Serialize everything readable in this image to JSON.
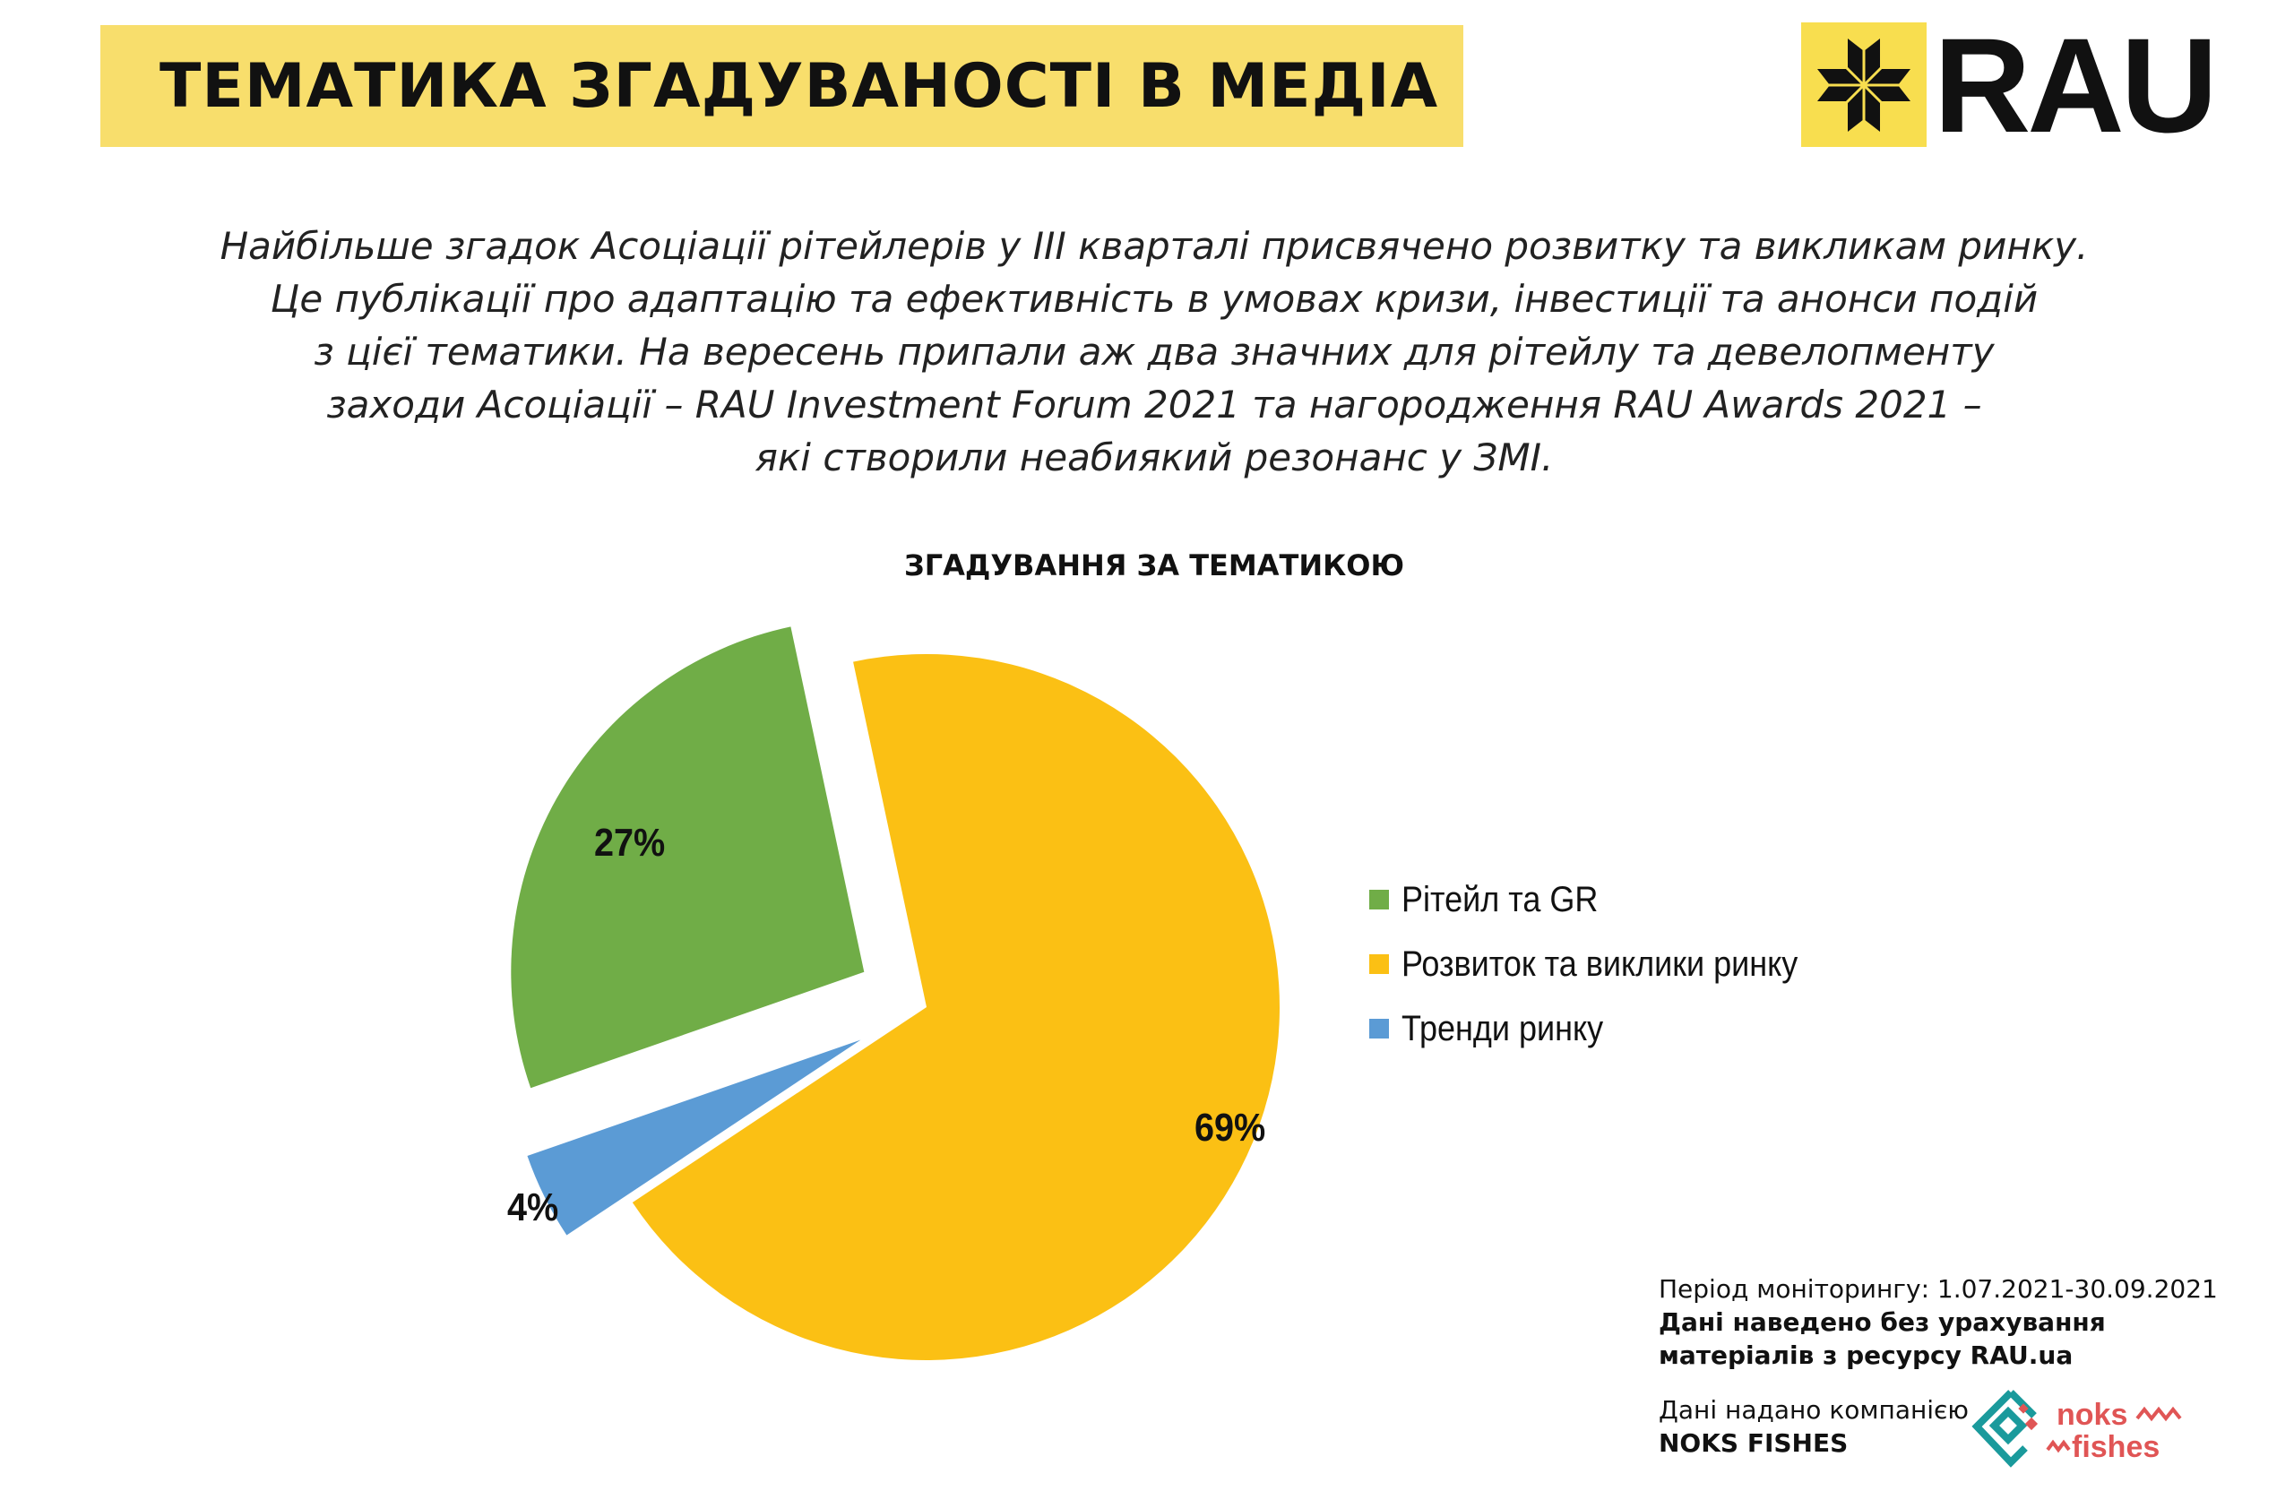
{
  "header": {
    "title": "ТЕМАТИКА ЗГАДУВАНОСТІ В МЕДІА",
    "logo_text": "RAU"
  },
  "intro": [
    "Найбільше згадок Асоціації рітейлерів у ІІІ кварталі присвячено розвитку та викликам ринку.",
    "Це публікації про адаптацію та ефективність в умовах кризи, інвестиції та анонси подій",
    "з цієї тематики. На вересень припали аж два значних для рітейлу та девелопменту",
    "заходи Асоціації – RAU Investment Forum 2021 та нагородження RAU Awards 2021 –",
    "які створили неабиякий резонанс у ЗМІ."
  ],
  "chart_data": {
    "type": "pie",
    "title": "ЗГАДУВАННЯ ЗА ТЕМАТИКОЮ",
    "categories": [
      "Рітейл та GR",
      "Розвиток та виклики ринку",
      "Тренди ринку"
    ],
    "values": [
      27,
      69,
      4
    ],
    "labels": [
      "27%",
      "69%",
      "4%"
    ],
    "colors": [
      "#70ad47",
      "#fbc014",
      "#5b9bd5"
    ],
    "legend_position": "right"
  },
  "footer": {
    "period": "Період моніторингу: 1.07.2021-30.09.2021",
    "note1": "Дані наведено без урахування",
    "note2": "матеріалів з ресурсу RAU.ua",
    "provided": "Дані надано компанією",
    "company": "NOKS FISHES",
    "noks_logo_text": "noks fishes"
  }
}
